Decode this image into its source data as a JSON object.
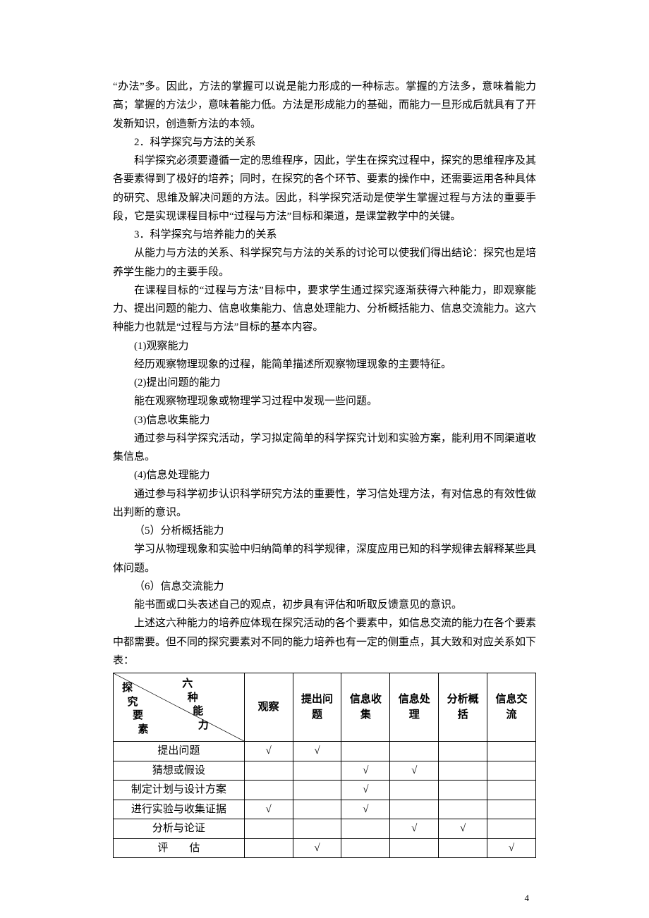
{
  "paragraphs": {
    "p1": "“办法”多。因此，方法的掌握可以说是能力形成的一种标志。掌握的方法多，意味着能力高；掌握的方法少，意味着能力低。方法是形成能力的基础，而能力一旦形成后就具有了开发新知识，创造新方法的本领。",
    "h2": "2．科学探究与方法的关系",
    "p2": "科学探究必须要遵循一定的思维程序，因此，学生在探究过程中，探究的思维程序及其各要素得到了极好的培养；同时，在探究的各个环节、要素的操作中，还需要运用各种具体的研究、思维及解决问题的方法。因此，科学探究活动是使学生掌握过程与方法的重要手段，它是实现课程目标中“过程与方法”目标和渠道，是课堂教学中的关键。",
    "h3": "3．科学探究与培养能力的关系",
    "p3": "从能力与方法的关系、科学探究与方法的关系的讨论可以使我们得出结论：探究也是培养学生能力的主要手段。",
    "p4": "在课程目标的“过程与方法”目标中，要求学生通过探究逐渐获得六种能力，即观察能力、提出问题的能力、信息收集能力、信息处理能力、分析概括能力、信息交流能力。这六种能力也就是“过程与方法”目标的基本内容。",
    "a1h": "(1)观察能力",
    "a1": "经历观察物理现象的过程，能简单描述所观察物理现象的主要特征。",
    "a2h": "(2)提出问题的能力",
    "a2": "能在观察物理现象或物理学习过程中发现一些问题。",
    "a3h": "(3)信息收集能力",
    "a3": "通过参与科学探究活动，学习拟定简单的科学探究计划和实验方案，能利用不同渠道收集信息。",
    "a4h": "(4)信息处理能力",
    "a4": "通过参与科学初步认识科学研究方法的重要性，学习信处理方法，有对信息的有效性做出判断的意识。",
    "a5h": "（5）分析概括能力",
    "a5": "学习从物理现象和实验中归纳简单的科学规律，深度应用已知的科学规律去解释某些具体问题。",
    "a6h": "（6）信息交流能力",
    "a6": "能书面或口头表述自己的观点，初步具有评估和听取反馈意见的意识。",
    "p5": "上述这六种能力的培养应体现在探究活动的各个要素中，如信息交流的能力在各个要素中都需要。但不同的探究要素对不同的能力培养也有一定的侧重点，其大致和对应关系如下表："
  },
  "table": {
    "diag_top": "六　种　能　力",
    "diag_bot": "探　究　要　素",
    "columns": [
      "观察",
      "提出问题",
      "信息收集",
      "信息处理",
      "分析概括",
      "信息交流"
    ],
    "rows": [
      {
        "label": "提出问题",
        "marks": [
          "√",
          "√",
          "",
          "",
          "",
          ""
        ]
      },
      {
        "label": "猜想或假设",
        "marks": [
          "",
          "",
          "√",
          "√",
          "",
          ""
        ]
      },
      {
        "label": "制定计划与设计方案",
        "marks": [
          "",
          "",
          "√",
          "",
          "",
          ""
        ]
      },
      {
        "label": "进行实验与收集证据",
        "marks": [
          "√",
          "",
          "√",
          "",
          "",
          ""
        ]
      },
      {
        "label": "分析与论证",
        "marks": [
          "",
          "",
          "",
          "√",
          "√",
          ""
        ]
      },
      {
        "label": "评　　估",
        "marks": [
          "",
          "√",
          "",
          "",
          "",
          "√"
        ]
      }
    ]
  },
  "page_number": "4"
}
